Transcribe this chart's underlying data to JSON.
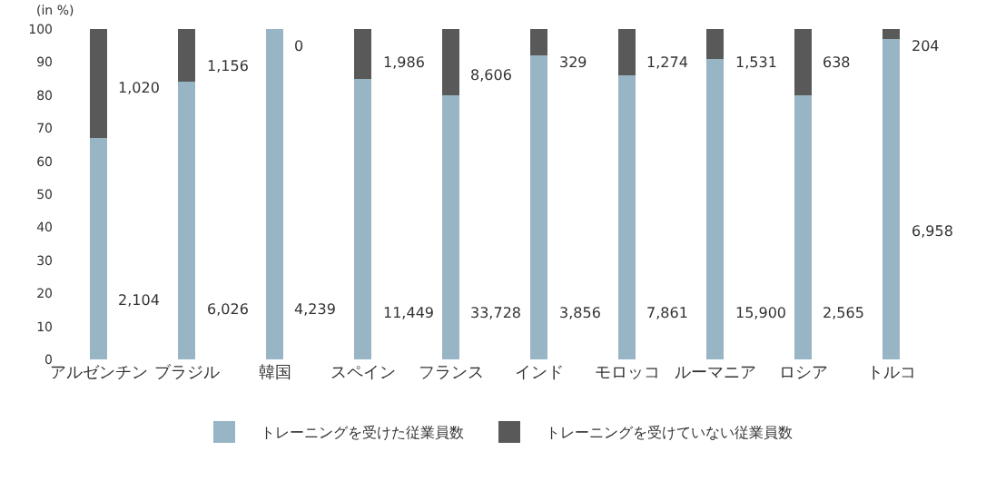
{
  "chart_data": {
    "type": "bar",
    "stacked": true,
    "ylabel": "(in %)",
    "categories": [
      "アルゼンチン",
      "ブラジル",
      "韓国",
      "スペイン",
      "フランス",
      "インド",
      "モロッコ",
      "ルーマニア",
      "ロシア",
      "トルコ"
    ],
    "series": [
      {
        "name": "トレーニングを受けた従業員数",
        "color": "#97b5c4",
        "values": [
          67,
          84,
          100,
          85,
          80,
          92,
          86,
          91,
          80,
          97
        ]
      },
      {
        "name": "トレーニングを受けていない従業員数",
        "color": "#595959",
        "values": [
          33,
          16,
          0,
          15,
          20,
          8,
          14,
          9,
          20,
          3
        ]
      }
    ],
    "annotations": [
      {
        "text": "2,104",
        "x": "アルゼンチン",
        "y": 18
      },
      {
        "text": "6,026",
        "x": "ブラジル",
        "y": 15
      },
      {
        "text": "4,239",
        "x": "韓国",
        "y": 15
      },
      {
        "text": "11,449",
        "x": "スペイン",
        "y": 14
      },
      {
        "text": "33,728",
        "x": "フランス",
        "y": 14
      },
      {
        "text": "3,856",
        "x": "インド",
        "y": 14
      },
      {
        "text": "7,861",
        "x": "モロッコ",
        "y": 14
      },
      {
        "text": "15,900",
        "x": "ルーマニア",
        "y": 14
      },
      {
        "text": "2,565",
        "x": "ロシア",
        "y": 14
      },
      {
        "text": "6,958",
        "x": "トルコ",
        "y": 39
      },
      {
        "text": "1,020",
        "x": "アルゼンチン",
        "y": 82
      },
      {
        "text": "1,156",
        "x": "ブラジル",
        "y": 89
      },
      {
        "text": "0",
        "x": "韓国",
        "y": 95
      },
      {
        "text": "1,986",
        "x": "スペイン",
        "y": 90
      },
      {
        "text": "8,606",
        "x": "フランス",
        "y": 86
      },
      {
        "text": "329",
        "x": "インド",
        "y": 90
      },
      {
        "text": "1,274",
        "x": "モロッコ",
        "y": 90
      },
      {
        "text": "1,531",
        "x": "ルーマニア",
        "y": 90
      },
      {
        "text": "638",
        "x": "ロシア",
        "y": 90
      },
      {
        "text": "204",
        "x": "トルコ",
        "y": 95
      }
    ],
    "ylim": [
      0,
      100
    ],
    "yticks": [
      0,
      10,
      20,
      30,
      40,
      50,
      60,
      70,
      80,
      90,
      100
    ],
    "grid": false,
    "legend": "bottom"
  }
}
